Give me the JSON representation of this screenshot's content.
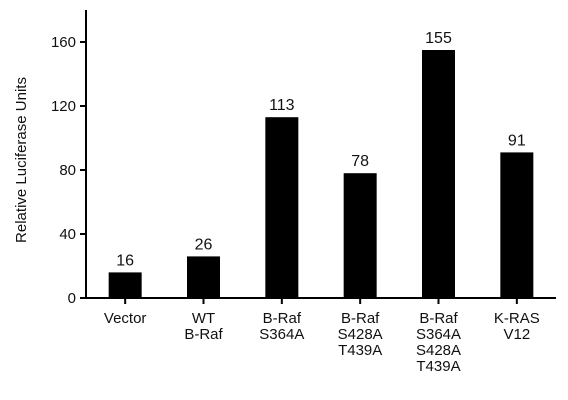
{
  "chart_data": {
    "type": "bar",
    "title": "",
    "xlabel": "",
    "ylabel": "Relative Luciferase Units",
    "ylim": [
      0,
      180
    ],
    "yticks": [
      0,
      40,
      80,
      120,
      160
    ],
    "grid": false,
    "legend": "none",
    "bar_color": "#000000",
    "categories": [
      [
        "Vector"
      ],
      [
        "WT",
        "B-Raf"
      ],
      [
        "B-Raf",
        "S364A"
      ],
      [
        "B-Raf",
        "S428A",
        "T439A"
      ],
      [
        "B-Raf",
        "S364A",
        "S428A",
        "T439A"
      ],
      [
        "K-RAS",
        "V12"
      ]
    ],
    "values": [
      16,
      26,
      113,
      78,
      155,
      91
    ],
    "data_labels": [
      "16",
      "26",
      "113",
      "78",
      "155",
      "91"
    ]
  }
}
